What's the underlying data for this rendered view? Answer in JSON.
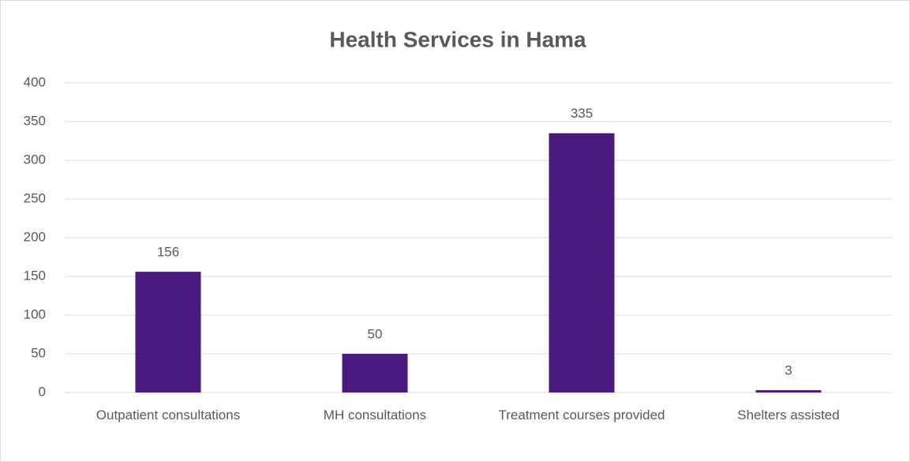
{
  "chart_data": {
    "type": "bar",
    "title": "Health Services in Hama",
    "categories": [
      "Outpatient consultations",
      "MH consultations",
      "Treatment courses provided",
      "Shelters assisted"
    ],
    "values": [
      156,
      50,
      335,
      3
    ],
    "color": "#4b1a7e",
    "ylim": [
      0,
      400
    ],
    "yticks": [
      0,
      50,
      100,
      150,
      200,
      250,
      300,
      350,
      400
    ],
    "grid": true
  }
}
